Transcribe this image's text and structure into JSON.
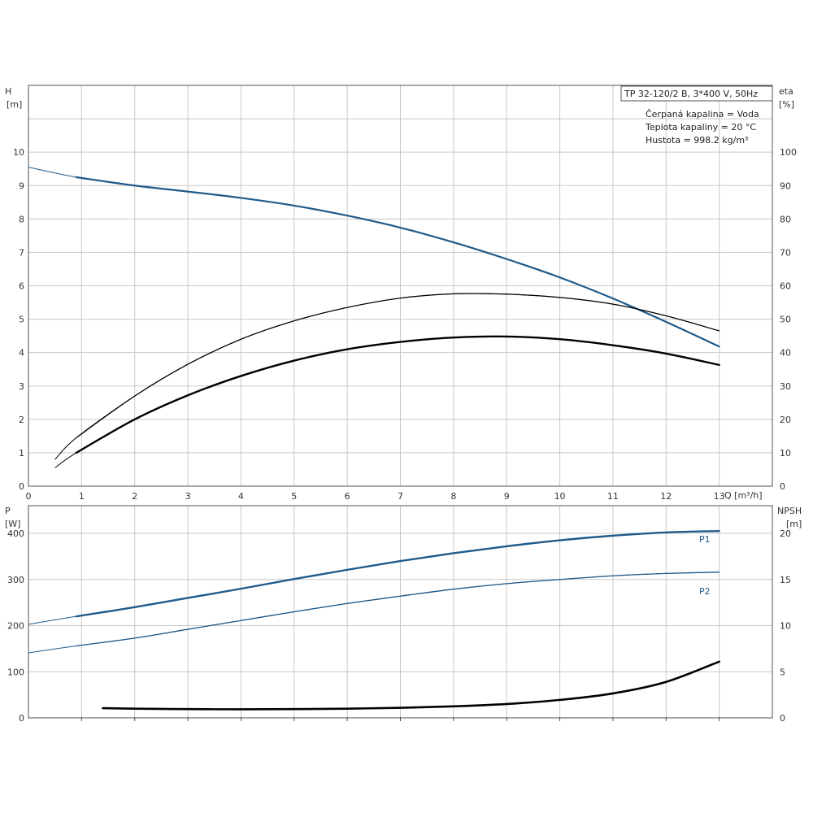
{
  "info": {
    "model": "TP 32-120/2 B, 3*400 V, 50Hz",
    "lines": [
      "Čerpaná kapalina = Voda",
      "Teplota kapaliny = 20 °C",
      "Hustota = 998.2 kg/m³"
    ]
  },
  "colors": {
    "blue": "#1f5a8a",
    "black": "#000000",
    "grid": "#c8c8c8"
  },
  "chart_data": [
    {
      "type": "line",
      "xlabel": "Q [m³/h]",
      "ylabel_left": "H [m]",
      "ylabel_right": "eta [%]",
      "xlim": [
        0,
        14
      ],
      "ylim": [
        0,
        12
      ],
      "ylim_right": [
        0,
        120
      ],
      "x_ticks": [
        0,
        1,
        2,
        3,
        4,
        5,
        6,
        7,
        8,
        9,
        10,
        11,
        12,
        13
      ],
      "y_ticks": [
        0,
        1,
        2,
        3,
        4,
        5,
        6,
        7,
        8,
        9,
        10
      ],
      "y_ticks_right": [
        0,
        10,
        20,
        30,
        40,
        50,
        60,
        70,
        80,
        90,
        100
      ],
      "grid": true,
      "series": [
        {
          "axis": "left",
          "color": "#1f5a8a",
          "x": [
            0,
            0.9,
            2,
            3,
            4,
            5,
            6,
            7,
            8,
            9,
            10,
            11,
            12,
            13
          ],
          "y": [
            9.55,
            9.25,
            9.0,
            8.82,
            8.63,
            8.4,
            8.1,
            7.74,
            7.3,
            6.8,
            6.25,
            5.62,
            4.92,
            4.18
          ],
          "solid_from": 0.9
        },
        {
          "axis": "right",
          "color": "#000000",
          "x": [
            0.5,
            0.9,
            2,
            3,
            4,
            5,
            6,
            7,
            8,
            9,
            10,
            11,
            12,
            13
          ],
          "y": [
            8,
            14.5,
            27,
            36.5,
            44,
            49.5,
            53.5,
            56.3,
            57.6,
            57.5,
            56.5,
            54.5,
            51,
            46.5
          ],
          "solid_from": 0.9,
          "width": 1.2
        },
        {
          "axis": "left",
          "color": "#000000",
          "x": [
            0.5,
            0.9,
            2,
            3,
            4,
            5,
            6,
            7,
            8,
            9,
            10,
            11,
            12,
            13
          ],
          "y": [
            0.55,
            1.0,
            2.0,
            2.72,
            3.3,
            3.76,
            4.1,
            4.32,
            4.45,
            4.48,
            4.4,
            4.22,
            3.97,
            3.63
          ],
          "solid_from": 0.9,
          "width": 2.4
        }
      ]
    },
    {
      "type": "line",
      "ylabel_left": "P [W]",
      "ylabel_right": "NPSH [m]",
      "xlim": [
        0,
        14
      ],
      "ylim": [
        0,
        460
      ],
      "ylim_right": [
        0,
        23
      ],
      "y_ticks": [
        0,
        100,
        200,
        300,
        400
      ],
      "y_ticks_right": [
        0,
        5,
        10,
        15,
        20
      ],
      "grid": true,
      "series": [
        {
          "name": "P1",
          "axis": "left",
          "color": "#1f5a8a",
          "x": [
            0,
            0.9,
            2,
            3,
            4,
            5,
            6,
            7,
            8,
            9,
            10,
            11,
            12,
            13
          ],
          "y": [
            203,
            220,
            240,
            260,
            280,
            301,
            321,
            340,
            357,
            372,
            385,
            395,
            402,
            405
          ],
          "solid_from": 0.9,
          "width": 2.4
        },
        {
          "name": "P2",
          "axis": "left",
          "color": "#1f5a8a",
          "x": [
            0,
            0.9,
            2,
            3,
            4,
            5,
            6,
            7,
            8,
            9,
            10,
            11,
            12,
            13
          ],
          "y": [
            141,
            156,
            173,
            192,
            211,
            230,
            248,
            264,
            279,
            291,
            300,
            308,
            313,
            316
          ],
          "solid_from": 0.9,
          "width": 1.3
        },
        {
          "axis": "right",
          "color": "#000000",
          "x": [
            1.4,
            2,
            3,
            4,
            5,
            6,
            7,
            8,
            9,
            10,
            11,
            12,
            13
          ],
          "y": [
            1.05,
            1.0,
            0.95,
            0.93,
            0.95,
            1.0,
            1.1,
            1.25,
            1.5,
            1.95,
            2.65,
            3.9,
            6.1
          ],
          "solid_from": 1.4,
          "width": 2.6
        }
      ]
    }
  ]
}
